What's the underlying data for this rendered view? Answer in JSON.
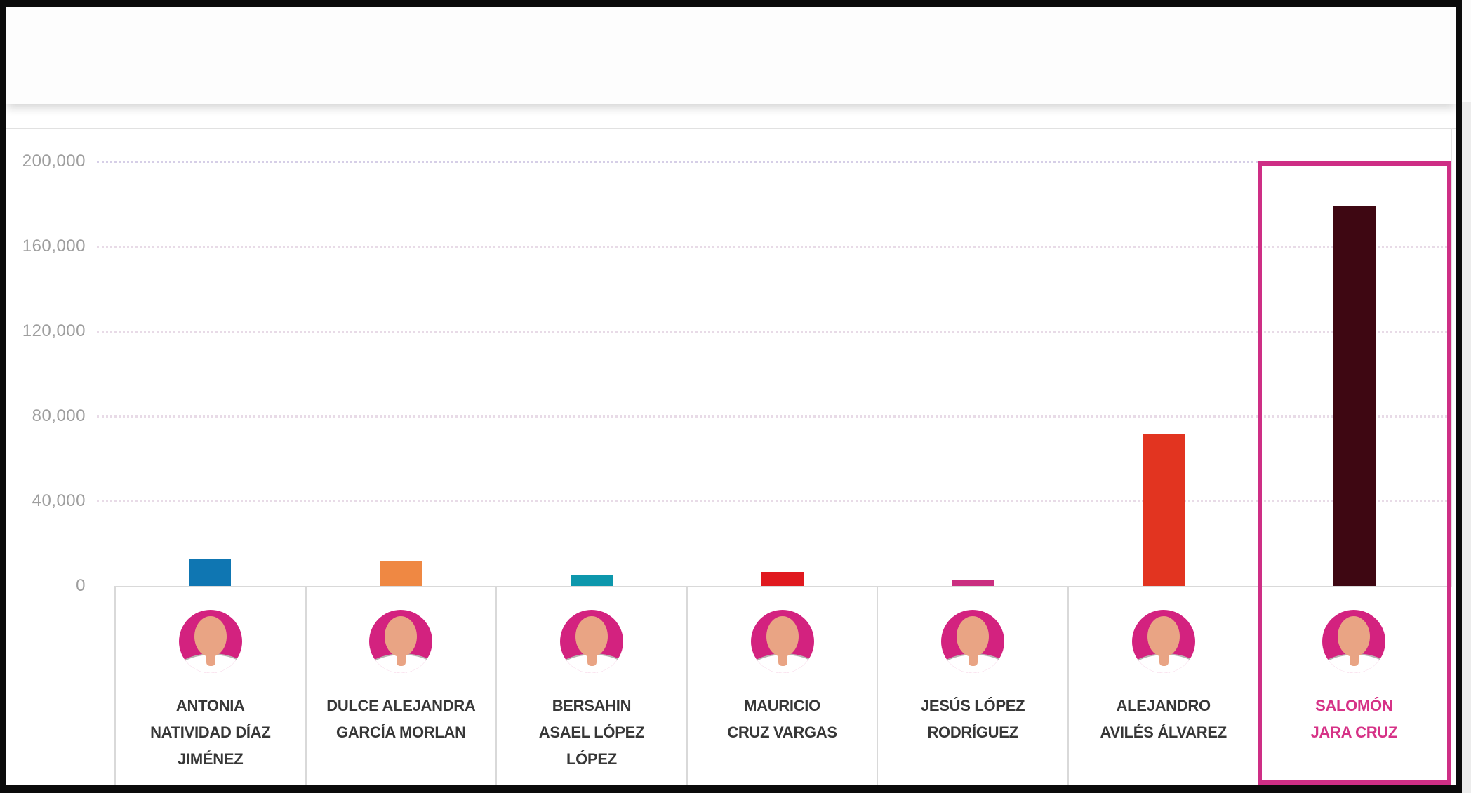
{
  "window": {
    "header_has_text": false
  },
  "chart_data": {
    "type": "bar",
    "title": "",
    "xlabel": "",
    "ylabel": "",
    "categories": [
      "ANTONIA NATIVIDAD DÍAZ JIMÉNEZ",
      "DULCE ALEJANDRA GARCÍA MORLAN",
      "BERSAHIN ASAEL LÓPEZ LÓPEZ",
      "MAURICIO CRUZ VARGAS",
      "JESÚS LÓPEZ RODRÍGUEZ",
      "ALEJANDRO AVILÉS ÁLVAREZ",
      "SALOMÓN JARA CRUZ"
    ],
    "values": [
      13000,
      11500,
      5000,
      6600,
      2700,
      71600,
      179200
    ],
    "bar_colors": [
      "#0f76b2",
      "#ef8843",
      "#0d97ac",
      "#e0191f",
      "#ca2e80",
      "#e23420",
      "#3e0712"
    ],
    "ylim": [
      0,
      200000
    ],
    "yticks": [
      {
        "label": "200,000",
        "value": 200000
      },
      {
        "label": "160,000",
        "value": 160000
      },
      {
        "label": "120,000",
        "value": 120000
      },
      {
        "label": "80,000",
        "value": 80000
      },
      {
        "label": "40,000",
        "value": 40000
      },
      {
        "label": "0",
        "value": 0
      }
    ],
    "grid": "horizontal dotted",
    "legend": "none",
    "highlighted_category": "SALOMÓN JARA CRUZ"
  },
  "candidates": [
    {
      "name": "ANTONIA NATIVIDAD DÍAZ JIMÉNEZ",
      "name_lines": [
        "ANTONIA",
        "NATIVIDAD DÍAZ",
        "JIMÉNEZ"
      ],
      "value": 13000,
      "bar_color": "#0f76b2",
      "highlighted": false
    },
    {
      "name": "DULCE ALEJANDRA GARCÍA MORLAN",
      "name_lines": [
        "DULCE ALEJANDRA",
        "GARCÍA MORLAN"
      ],
      "value": 11500,
      "bar_color": "#ef8843",
      "highlighted": false
    },
    {
      "name": "BERSAHIN ASAEL LÓPEZ LÓPEZ",
      "name_lines": [
        "BERSAHIN",
        "ASAEL LÓPEZ",
        "LÓPEZ"
      ],
      "value": 5000,
      "bar_color": "#0d97ac",
      "highlighted": false
    },
    {
      "name": "MAURICIO CRUZ VARGAS",
      "name_lines": [
        "MAURICIO",
        "CRUZ VARGAS"
      ],
      "value": 6600,
      "bar_color": "#e0191f",
      "highlighted": false
    },
    {
      "name": "JESÚS LÓPEZ RODRÍGUEZ",
      "name_lines": [
        "JESÚS LÓPEZ",
        "RODRÍGUEZ"
      ],
      "value": 2700,
      "bar_color": "#ca2e80",
      "highlighted": false
    },
    {
      "name": "ALEJANDRO AVILÉS ÁLVAREZ",
      "name_lines": [
        "ALEJANDRO",
        "AVILÉS ÁLVAREZ"
      ],
      "value": 71600,
      "bar_color": "#e23420",
      "highlighted": false
    },
    {
      "name": "SALOMÓN JARA CRUZ",
      "name_lines": [
        "SALOMÓN",
        "JARA CRUZ"
      ],
      "value": 179200,
      "bar_color": "#3e0712",
      "highlighted": true
    }
  ],
  "colors": {
    "highlight_box": "#ce2e85",
    "winner_text": "#d63287",
    "avatar_circle": "#d3227f",
    "avatar_skin": "#e9a484",
    "axis_text": "#9e9e9e",
    "table_border": "#d9d9d9",
    "frame": "#0b0b0b"
  }
}
